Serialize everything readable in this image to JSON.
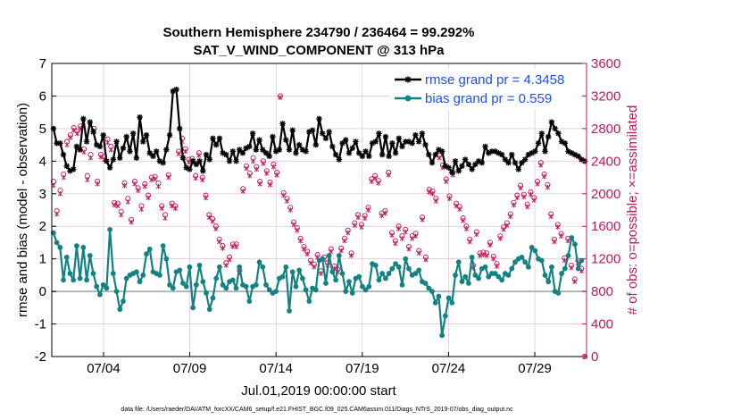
{
  "chart_data": {
    "type": "line",
    "title": "Southern Hemisphere 234790 / 236464 = 99.292%",
    "subtitle": "SAT_V_WIND_COMPONENT @ 313 hPa",
    "xlabel": "Jul.01,2019 00:00:00 start",
    "ylabel": "rmse and bias (model - observation)",
    "y2label": "# of obs: o=possible; ×=assimilated",
    "footer": "data file: /Users/raeder/DAI/ATM_forcXX/CAM6_setup/f.e21.FHIST_BGC.f09_025.CAM6assim.011/Diags_NTrS_2019-07/obs_diag_output.nc",
    "x_tick_labels": [
      "07/04",
      "07/09",
      "07/14",
      "07/19",
      "07/24",
      "07/29"
    ],
    "x_tick_days": [
      4,
      9,
      14,
      19,
      24,
      29
    ],
    "xlim": [
      1,
      32
    ],
    "ylim": [
      -2,
      7
    ],
    "y_ticks": [
      "-2",
      "-1",
      "0",
      "1",
      "2",
      "3",
      "4",
      "5",
      "6",
      "7"
    ],
    "y2lim": [
      0,
      3600
    ],
    "y2_ticks": [
      "0",
      "400",
      "800",
      "1200",
      "1600",
      "2000",
      "2400",
      "2800",
      "3200",
      "3600"
    ],
    "grid": true,
    "legend_position": "top-right",
    "colors": {
      "rmse": "#000000",
      "bias": "#138282",
      "obs": "#c2185b",
      "zero_line": "#b4b4b4",
      "grid": "#e6c6d6"
    },
    "series": [
      {
        "name": "rmse grand pr = 4.3458",
        "marker": "star",
        "values": [
          5.0,
          4.55,
          4.55,
          4.2,
          3.85,
          3.7,
          3.75,
          4.45,
          4.35,
          5.3,
          4.6,
          5.2,
          4.9,
          4.5,
          4.45,
          4.8,
          4.0,
          3.8,
          4.05,
          4.6,
          4.1,
          4.4,
          4.75,
          4.3,
          4.85,
          4.1,
          5.35,
          4.6,
          4.8,
          4.25,
          4.15,
          4.3,
          4.0,
          3.95,
          4.35,
          4.8,
          6.15,
          6.2,
          5.0,
          4.1,
          3.8,
          3.75,
          4.0,
          3.9,
          4.0,
          3.7,
          4.2,
          4.05,
          4.7,
          4.5,
          4.7,
          4.25,
          4.2,
          4.0,
          4.3,
          4.0,
          4.35,
          4.25,
          4.4,
          4.45,
          4.85,
          4.35,
          4.65,
          4.35,
          4.25,
          4.15,
          4.75,
          4.3,
          4.35,
          5.15,
          4.65,
          4.35,
          4.95,
          4.25,
          4.5,
          4.35,
          4.3,
          4.9,
          4.95,
          4.5,
          5.3,
          4.85,
          4.7,
          4.9,
          4.45,
          4.2,
          4.05,
          4.55,
          4.65,
          4.25,
          4.4,
          4.6,
          4.25,
          4.15,
          4.3,
          4.15,
          4.55,
          4.6,
          4.85,
          4.2,
          4.75,
          4.15,
          4.55,
          4.25,
          4.7,
          4.45,
          4.6,
          4.6,
          4.55,
          4.8,
          4.6,
          4.85,
          4.5,
          4.2,
          3.95,
          4.2,
          4.35,
          4.3,
          3.85,
          3.8,
          3.65,
          4.0,
          3.7,
          3.85,
          4.05,
          3.9,
          3.75,
          3.9,
          4.0,
          3.95,
          4.45,
          4.25,
          4.3,
          4.3,
          4.25,
          4.2,
          4.05,
          3.95,
          4.2,
          3.95,
          3.75,
          3.95,
          4.05,
          4.2,
          4.25,
          4.3,
          4.55,
          4.85,
          4.3,
          4.75,
          5.2,
          5.0,
          4.85,
          4.6,
          4.55,
          4.3,
          4.25,
          4.2,
          4.15,
          4.05,
          4.0
        ]
      },
      {
        "name": "bias grand pr = 0.559",
        "marker": "circle",
        "values": [
          1.8,
          1.5,
          1.35,
          0.35,
          1.05,
          0.55,
          0.35,
          1.4,
          0.4,
          1.35,
          0.35,
          1.1,
          0.55,
          0.15,
          -0.1,
          0.2,
          0.1,
          1.9,
          0.55,
          0.0,
          -0.55,
          -0.3,
          0.4,
          0.5,
          0.55,
          0.6,
          0.3,
          0.5,
          1.15,
          1.3,
          0.6,
          0.55,
          0.5,
          1.4,
          1.0,
          0.2,
          0.1,
          0.6,
          0.65,
          0.25,
          0.15,
          0.75,
          -0.5,
          0.2,
          0.8,
          0.3,
          -0.05,
          -0.55,
          -0.2,
          0.4,
          0.75,
          0.2,
          0.1,
          0.3,
          0.35,
          0.1,
          0.75,
          0.2,
          0.15,
          -0.3,
          0.15,
          0.2,
          0.9,
          0.75,
          0.2,
          0.05,
          -0.05,
          0.0,
          0.4,
          0.45,
          0.75,
          -0.6,
          0.6,
          0.15,
          0.65,
          0.4,
          0.05,
          -0.3,
          0.1,
          0.05,
          0.95,
          1.0,
          0.25,
          1.1,
          0.6,
          0.35,
          1.1,
          0.55,
          0.0,
          0.3,
          -0.05,
          0.4,
          0.45,
          0.15,
          0.05,
          0.15,
          0.85,
          0.8,
          0.35,
          0.55,
          0.4,
          0.55,
          0.7,
          0.85,
          0.75,
          0.2,
          1.0,
          0.7,
          0.5,
          0.55,
          0.65,
          0.3,
          0.25,
          0.1,
          0.0,
          -0.35,
          -0.15,
          -1.35,
          -0.75,
          -0.2,
          -0.35,
          0.5,
          0.9,
          0.3,
          0.45,
          0.25,
          1.05,
          0.5,
          0.4,
          0.7,
          0.75,
          0.45,
          0.55,
          0.55,
          0.45,
          0.35,
          0.55,
          0.5,
          0.7,
          0.9,
          1.0,
          1.05,
          0.9,
          0.75,
          1.35,
          1.25,
          1.0,
          0.95,
          0.5,
          0.3,
          0.75,
          0.0,
          -0.05,
          0.55,
          0.7,
          1.1,
          1.65,
          1.45,
          0.7,
          0.95
        ]
      }
    ],
    "obs_possible": [
      2150,
      1790,
      2040,
      2240,
      2640,
      2720,
      2810,
      2770,
      2830,
      2550,
      2220,
      2480,
      2800,
      2150,
      2480,
      2460,
      2670,
      2580,
      1890,
      1880,
      1780,
      2130,
      1940,
      1680,
      2150,
      2070,
      1850,
      2120,
      1980,
      2200,
      2210,
      2130,
      1850,
      1740,
      2230,
      1880,
      1850,
      2520,
      2680,
      2550,
      2420,
      2430,
      2220,
      2500,
      2200,
      1980,
      1740,
      1690,
      1600,
      1440,
      1360,
      1150,
      1220,
      1380,
      1380,
      1060,
      2060,
      2340,
      2250,
      2440,
      2330,
      2150,
      2400,
      2280,
      2140,
      2360,
      2260,
      3200,
      2010,
      1940,
      1830,
      1650,
      1580,
      1450,
      1350,
      1290,
      1180,
      1130,
      1250,
      1050,
      1220,
      1150,
      1320,
      1110,
      1070,
      1330,
      1450,
      1550,
      1270,
      1640,
      1740,
      1620,
      1730,
      1830,
      2180,
      2220,
      2160,
      1760,
      1790,
      2260,
      1520,
      1420,
      1600,
      1480,
      1560,
      1350,
      1480,
      1510,
      1300,
      1710,
      1220,
      2050,
      2030,
      1940,
      2470,
      2350,
      2180,
      1970,
      2260,
      1880,
      1840,
      1700,
      1600,
      1440,
      1120,
      1530,
      1270,
      1280,
      1270,
      1400,
      1230,
      1140,
      1480,
      1590,
      1640,
      1750,
      1890,
      1980,
      2100,
      1990,
      1870,
      2020,
      1950,
      2150,
      2380,
      2240,
      2110,
      1750,
      1440,
      1620,
      1510,
      1210,
      1450,
      1120,
      950,
      1180,
      1080,
      0
    ],
    "obs_assimilated": [
      2100,
      1750,
      2000,
      2200,
      2600,
      2690,
      2780,
      2740,
      2800,
      2510,
      2170,
      2440,
      2770,
      2120,
      2450,
      2420,
      2630,
      2540,
      1860,
      1850,
      1740,
      2100,
      1900,
      1650,
      2120,
      2040,
      1810,
      2090,
      1950,
      2170,
      2180,
      2090,
      1820,
      1700,
      2200,
      1850,
      1820,
      2490,
      2640,
      2520,
      2390,
      2400,
      2190,
      2470,
      2170,
      1950,
      1710,
      1660,
      1570,
      1410,
      1330,
      1120,
      1190,
      1350,
      1350,
      1030,
      2030,
      2310,
      2220,
      2400,
      2300,
      2120,
      2370,
      2250,
      2110,
      2330,
      2230,
      3180,
      1980,
      1910,
      1800,
      1620,
      1550,
      1420,
      1320,
      1260,
      1150,
      1100,
      1220,
      1020,
      1190,
      1120,
      1290,
      1080,
      1040,
      1300,
      1420,
      1520,
      1240,
      1610,
      1710,
      1590,
      1700,
      1800,
      2150,
      2190,
      2130,
      1730,
      1760,
      2230,
      1490,
      1390,
      1570,
      1450,
      1530,
      1320,
      1450,
      1480,
      1270,
      1680,
      1190,
      2020,
      2000,
      1910,
      2440,
      2320,
      2150,
      1940,
      2230,
      1850,
      1810,
      1670,
      1570,
      1410,
      1090,
      1500,
      1240,
      1250,
      1240,
      1370,
      1200,
      1110,
      1450,
      1560,
      1610,
      1720,
      1860,
      1950,
      2070,
      1960,
      1840,
      1990,
      1920,
      2120,
      2350,
      2210,
      2080,
      1720,
      1410,
      1590,
      1480,
      1180,
      1420,
      1090,
      920,
      1150,
      1050,
      0
    ]
  }
}
